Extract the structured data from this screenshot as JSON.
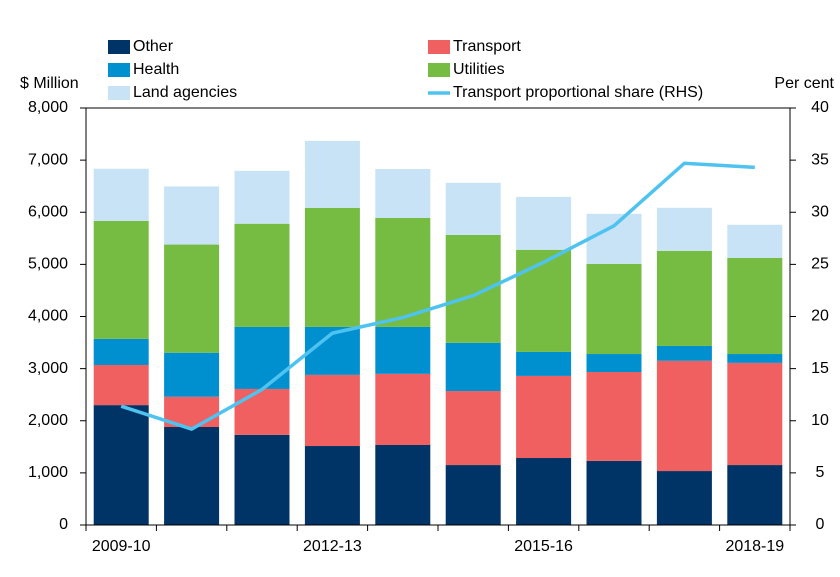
{
  "chart_data": {
    "type": "bar",
    "stacked": true,
    "y_label": "$ Million",
    "y2_label": "Per cent",
    "categories": [
      "2009-10",
      null,
      null,
      "2012-13",
      null,
      null,
      "2015-16",
      null,
      null,
      "2018-19"
    ],
    "series": [
      {
        "name": "Other",
        "color": "#003466",
        "values": [
          2300,
          1880,
          1730,
          1515,
          1535,
          1150,
          1285,
          1230,
          1035,
          1150
        ]
      },
      {
        "name": "Transport",
        "color": "#f06060",
        "values": [
          770,
          580,
          880,
          1365,
          1365,
          1420,
          1575,
          1705,
          2115,
          1960
        ]
      },
      {
        "name": "Health",
        "color": "#0090d0",
        "values": [
          500,
          845,
          1190,
          920,
          900,
          925,
          460,
          345,
          285,
          170
        ]
      },
      {
        "name": "Utilities",
        "color": "#76bc43",
        "values": [
          2265,
          2075,
          1980,
          2285,
          2090,
          2070,
          1960,
          1730,
          1825,
          1845
        ]
      },
      {
        "name": "Land agencies",
        "color": "#c8e3f5",
        "values": [
          1000,
          1115,
          1015,
          1285,
          940,
          1000,
          1015,
          960,
          825,
          635
        ]
      },
      {
        "name": "Transport proportional share (RHS)",
        "color": "#4fc3f0",
        "type": "line",
        "axis": "y2",
        "values": [
          11.4,
          9.2,
          13.0,
          18.4,
          19.9,
          22.0,
          25.2,
          28.7,
          34.7,
          34.3
        ]
      }
    ],
    "ylim": [
      0,
      8000
    ],
    "yticks": [
      0,
      {
        "value": 1000,
        "label": "1,000"
      },
      {
        "value": 2000,
        "label": "2,000"
      },
      {
        "value": 3000,
        "label": "3,000"
      },
      {
        "value": 4000,
        "label": "4,000"
      },
      {
        "value": 5000,
        "label": "5,000"
      },
      {
        "value": 6000,
        "label": "6,000"
      },
      {
        "value": 7000,
        "label": "7,000"
      },
      {
        "value": 8000,
        "label": "8,000"
      }
    ],
    "y2lim": [
      0,
      40
    ],
    "y2ticks": [
      0,
      5,
      10,
      15,
      20,
      25,
      30,
      35,
      40
    ],
    "grid": false
  }
}
